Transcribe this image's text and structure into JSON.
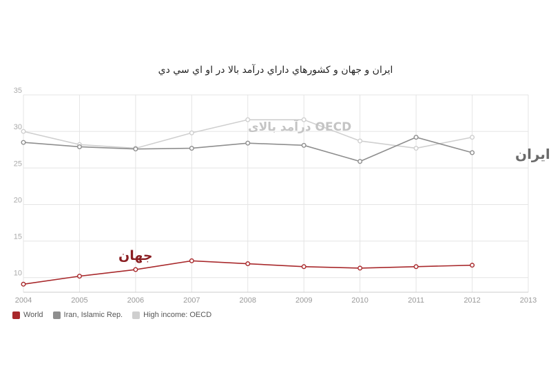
{
  "chart_data": {
    "type": "line",
    "title": "ایران و جهان و کشورهاي داراي درآمد بالا در او اي سي دي",
    "xlabel": "",
    "ylabel": "",
    "x": [
      2004,
      2005,
      2006,
      2007,
      2008,
      2009,
      2010,
      2011,
      2012
    ],
    "x_ticks": [
      "2004",
      "2005",
      "2006",
      "2007",
      "2008",
      "2009",
      "2010",
      "2011",
      "2012",
      "2013"
    ],
    "y_ticks": [
      "10",
      "15",
      "20",
      "25",
      "30",
      "35"
    ],
    "xlim": [
      2004,
      2013
    ],
    "ylim": [
      8,
      35
    ],
    "grid": true,
    "legend_position": "bottom-left",
    "series": [
      {
        "name": "World",
        "color": "#a8282b",
        "values": [
          9.1,
          10.2,
          11.1,
          12.3,
          11.9,
          11.5,
          11.3,
          11.5,
          11.7
        ]
      },
      {
        "name": "Iran, Islamic Rep.",
        "color": "#8e8e8e",
        "values": [
          28.5,
          27.9,
          27.6,
          27.7,
          28.4,
          28.1,
          25.9,
          29.2,
          27.1
        ]
      },
      {
        "name": "High income: OECD",
        "color": "#cfcfcf",
        "values": [
          30.0,
          28.2,
          27.7,
          29.8,
          31.6,
          31.6,
          28.7,
          27.7,
          29.2
        ]
      }
    ],
    "annotations": [
      {
        "id": "oecd",
        "text": "OECD درآمد بالای",
        "color": "#c4c4c4"
      },
      {
        "id": "iran",
        "text": "ایران",
        "color": "#6a6a6a"
      },
      {
        "id": "world",
        "text": "جهان",
        "color": "#8a1e22"
      }
    ]
  }
}
